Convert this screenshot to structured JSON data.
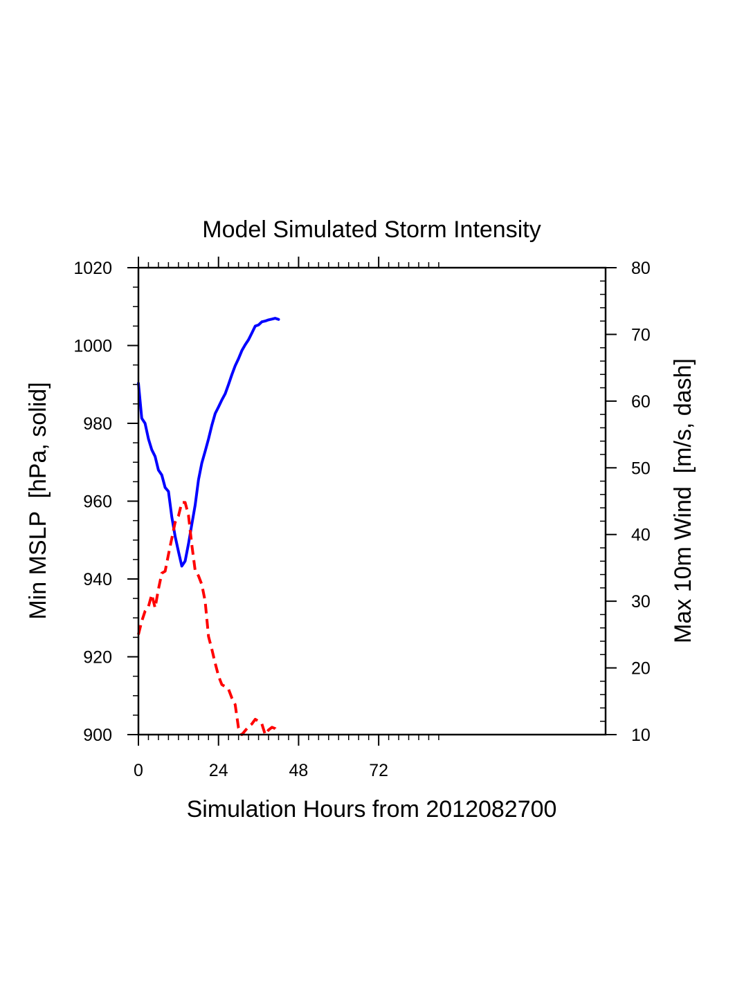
{
  "chart_data": {
    "type": "line",
    "title": "Model Simulated Storm Intensity",
    "xlabel": "Simulation Hours from 2012082700",
    "ylabel_left": "Min MSLP  [hPa, solid]",
    "ylabel_right": "Max 10m Wind  [m/s, dash]",
    "xlim": [
      0,
      140
    ],
    "ylim_left": [
      900,
      1020
    ],
    "ylim_right": [
      10,
      80
    ],
    "x_ticks_major": [
      0,
      24,
      48,
      72
    ],
    "x_tick_labels": [
      "0",
      "24",
      "48",
      "72"
    ],
    "x_minor_step": 3,
    "x_minor_max": 90,
    "y_left_ticks": [
      900,
      920,
      940,
      960,
      980,
      1000,
      1020
    ],
    "y_left_tick_labels": [
      "900",
      "920",
      "940",
      "960",
      "980",
      "1000",
      "1020"
    ],
    "y_left_minor_step": 5,
    "y_right_ticks": [
      10,
      20,
      30,
      40,
      50,
      60,
      70,
      80
    ],
    "y_right_tick_labels": [
      "10",
      "20",
      "30",
      "40",
      "50",
      "60",
      "70",
      "80"
    ],
    "y_right_minor_step": 2,
    "grid": false,
    "x": [
      0,
      1,
      2,
      3,
      4,
      5,
      6,
      7,
      8,
      9,
      10,
      11,
      12,
      13,
      14,
      15,
      16,
      17,
      18,
      19,
      20,
      21,
      22,
      23,
      24,
      25,
      26,
      27,
      28,
      29,
      30,
      31,
      32,
      33,
      34,
      35,
      36,
      37,
      38,
      39,
      40,
      41,
      42
    ],
    "series": [
      {
        "name": "Min MSLP",
        "axis": "left",
        "style": "solid",
        "color": "#0000ff",
        "values": [
          990.3,
          981.3,
          980.0,
          976.0,
          973.2,
          971.5,
          968.0,
          966.7,
          963.5,
          962.5,
          956.0,
          951.0,
          947.0,
          943.3,
          944.6,
          949.0,
          954.0,
          959.0,
          965.5,
          969.8,
          972.8,
          976.0,
          979.5,
          982.5,
          984.2,
          986.0,
          987.6,
          990.0,
          992.5,
          994.8,
          996.6,
          998.7,
          1000.2,
          1001.5,
          1003.2,
          1005.0,
          1005.3,
          1006.1,
          1006.3,
          1006.6,
          1006.8,
          1007.0,
          1006.7
        ]
      },
      {
        "name": "Max 10m Wind",
        "axis": "right",
        "style": "dash",
        "color": "#ff0000",
        "values": [
          25.0,
          27.0,
          28.5,
          29.2,
          31.0,
          29.0,
          31.8,
          34.2,
          34.5,
          37.0,
          39.4,
          41.8,
          42.8,
          44.8,
          44.8,
          42.9,
          38.5,
          34.6,
          33.8,
          32.5,
          30.0,
          24.7,
          22.8,
          20.7,
          18.8,
          17.5,
          17.2,
          16.8,
          15.5,
          14.5,
          11.0,
          10.0,
          10.6,
          11.2,
          11.6,
          12.3,
          12.0,
          11.6,
          10.0,
          10.7,
          11.1,
          10.9,
          10.2
        ]
      }
    ]
  }
}
